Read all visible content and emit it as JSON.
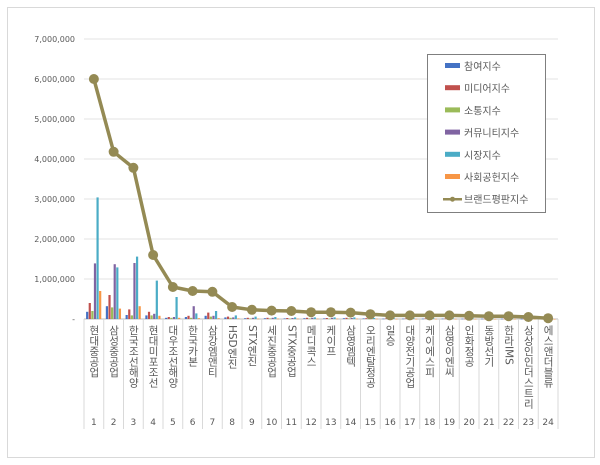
{
  "chart_data": {
    "type": "bar",
    "title": "",
    "xlabel": "",
    "ylabel": "",
    "ylim": [
      0,
      7000000
    ],
    "yticks": [
      "-",
      "1,000,000",
      "2,000,000",
      "3,000,000",
      "4,000,000",
      "5,000,000",
      "6,000,000",
      "7,000,000"
    ],
    "grid": true,
    "legend_position": "top-right",
    "categories": [
      "현대중공업",
      "삼성중공업",
      "한국조선해양",
      "현대미포조선",
      "대우조선해양",
      "한국카본",
      "삼강엠앤티",
      "HSD엔진",
      "STX엔진",
      "세진중공업",
      "STX중공업",
      "메디콕스",
      "케이프",
      "삼영엠텍",
      "오리엔탈정공",
      "일승",
      "대양전기공업",
      "케이에스피",
      "삼영이엔씨",
      "인화정공",
      "동방선기",
      "한라IMS",
      "상상인인더스트리",
      "에스앤더블류"
    ],
    "ranks": [
      "1",
      "2",
      "3",
      "4",
      "5",
      "6",
      "7",
      "8",
      "9",
      "10",
      "11",
      "12",
      "13",
      "14",
      "15",
      "16",
      "17",
      "18",
      "19",
      "20",
      "21",
      "22",
      "23",
      "24"
    ],
    "series": [
      {
        "name": "참여지수",
        "type": "bar",
        "color": "#4472c4",
        "values": [
          180000,
          320000,
          100000,
          90000,
          30000,
          50000,
          80000,
          40000,
          20000,
          20000,
          15000,
          20000,
          15000,
          20000,
          15000,
          10000,
          10000,
          10000,
          10000,
          8000,
          8000,
          8000,
          6000,
          3000
        ]
      },
      {
        "name": "미디어지수",
        "type": "bar",
        "color": "#c0504d",
        "values": [
          400000,
          600000,
          240000,
          180000,
          50000,
          80000,
          160000,
          60000,
          30000,
          30000,
          25000,
          30000,
          25000,
          30000,
          20000,
          15000,
          15000,
          15000,
          12000,
          10000,
          10000,
          10000,
          8000,
          4000
        ]
      },
      {
        "name": "소통지수",
        "type": "bar",
        "color": "#9bbb59",
        "values": [
          200000,
          290000,
          90000,
          90000,
          30000,
          30000,
          60000,
          30000,
          15000,
          15000,
          12000,
          15000,
          12000,
          15000,
          10000,
          8000,
          8000,
          8000,
          6000,
          5000,
          5000,
          5000,
          4000,
          2000
        ]
      },
      {
        "name": "커뮤니티지수",
        "type": "bar",
        "color": "#8064a2",
        "values": [
          1390000,
          1370000,
          1400000,
          130000,
          50000,
          320000,
          80000,
          40000,
          30000,
          30000,
          25000,
          30000,
          30000,
          25000,
          20000,
          15000,
          15000,
          15000,
          12000,
          10000,
          10000,
          10000,
          8000,
          4000
        ]
      },
      {
        "name": "시장지수",
        "type": "bar",
        "color": "#4bacc6",
        "values": [
          3040000,
          1290000,
          1560000,
          960000,
          550000,
          140000,
          200000,
          90000,
          60000,
          50000,
          40000,
          40000,
          40000,
          40000,
          25000,
          20000,
          20000,
          20000,
          15000,
          12000,
          12000,
          12000,
          10000,
          5000
        ]
      },
      {
        "name": "사회공헌지수",
        "type": "bar",
        "color": "#f79646",
        "values": [
          700000,
          260000,
          320000,
          80000,
          30000,
          20000,
          20000,
          15000,
          10000,
          10000,
          10000,
          10000,
          10000,
          10000,
          8000,
          6000,
          6000,
          6000,
          5000,
          4000,
          4000,
          4000,
          3000,
          2000
        ]
      },
      {
        "name": "브랜드평판지수",
        "type": "line",
        "color": "#948a54",
        "values": [
          6000000,
          4180000,
          3780000,
          1600000,
          800000,
          700000,
          680000,
          300000,
          230000,
          210000,
          200000,
          170000,
          170000,
          160000,
          120000,
          90000,
          90000,
          90000,
          90000,
          80000,
          70000,
          70000,
          50000,
          20000
        ]
      }
    ]
  }
}
